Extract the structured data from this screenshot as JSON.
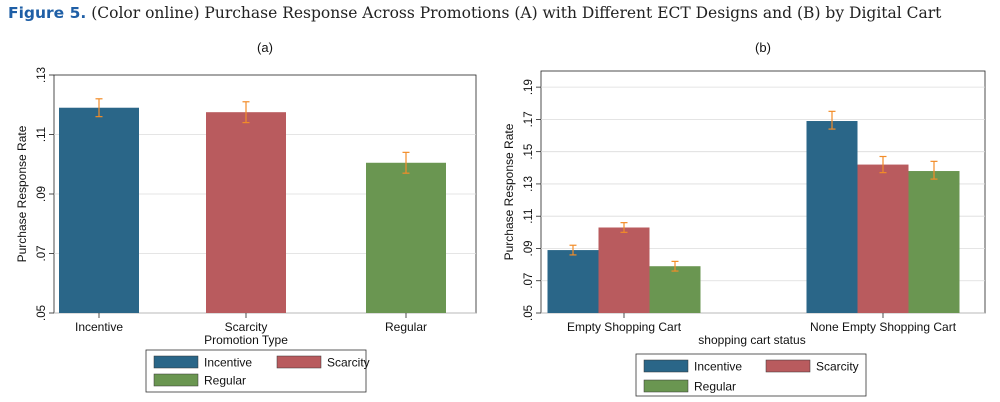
{
  "figure": {
    "label": "Figure 5.",
    "caption": "(Color online) Purchase Response Across Promotions (A) with Different ECT Designs and (B) by Digital Cart"
  },
  "colors": {
    "Incentive": "#2a6688",
    "Scarcity": "#b95b5e",
    "Regular": "#6a9651",
    "errorbar": "#f28c28"
  },
  "chart_data": [
    {
      "type": "bar",
      "title": "(a)",
      "xlabel": "Promotion Type",
      "ylabel": "Purchase Response Rate",
      "ylim": [
        0.05,
        0.13
      ],
      "yticks": [
        ".05",
        ".07",
        ".09",
        ".11",
        ".13"
      ],
      "categories": [
        "Incentive",
        "Scarcity",
        "Regular"
      ],
      "series": [
        {
          "values": [
            0.119,
            0.1175,
            0.1005
          ]
        }
      ],
      "ci_low": [
        0.116,
        0.114,
        0.097
      ],
      "ci_high": [
        0.122,
        0.121,
        0.104
      ],
      "legend": {
        "entries": [
          "Incentive",
          "Scarcity",
          "Regular"
        ],
        "placement": "bottom"
      },
      "grid": true
    },
    {
      "type": "bar",
      "title": "(b)",
      "xlabel": "shopping cart status",
      "ylabel": "Purchase Response Rate",
      "ylim": [
        0.05,
        0.2
      ],
      "yticks": [
        ".05",
        ".07",
        ".09",
        ".11",
        ".13",
        ".15",
        ".17",
        ".19"
      ],
      "categories": [
        "Empty Shopping Cart",
        "None Empty Shopping Cart"
      ],
      "series": [
        {
          "name": "Incentive",
          "values": [
            0.089,
            0.169
          ],
          "ci_low": [
            0.086,
            0.164
          ],
          "ci_high": [
            0.092,
            0.175
          ]
        },
        {
          "name": "Scarcity",
          "values": [
            0.103,
            0.142
          ],
          "ci_low": [
            0.1,
            0.137
          ],
          "ci_high": [
            0.106,
            0.147
          ]
        },
        {
          "name": "Regular",
          "values": [
            0.079,
            0.138
          ],
          "ci_low": [
            0.076,
            0.133
          ],
          "ci_high": [
            0.082,
            0.144
          ]
        }
      ],
      "legend": {
        "entries": [
          "Incentive",
          "Scarcity",
          "Regular"
        ],
        "placement": "bottom"
      },
      "grid": true
    }
  ]
}
